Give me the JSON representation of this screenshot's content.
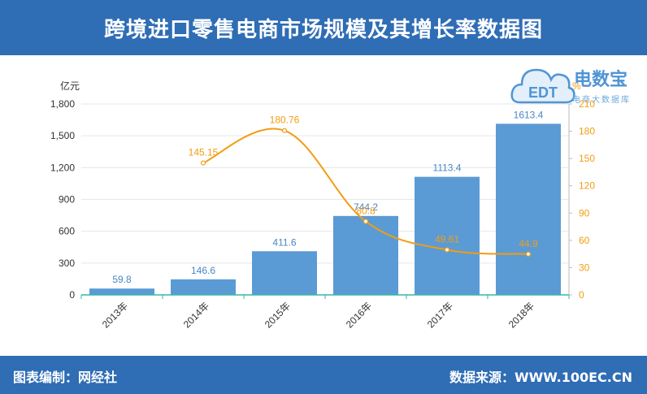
{
  "header": {
    "title": "跨境进口零售电商市场规模及其增长率数据图"
  },
  "footer": {
    "left": "图表编制：网经社",
    "right": "数据来源：WWW.100EC.CN"
  },
  "logo": {
    "text": "电数宝",
    "mark": "EDT",
    "sub": "电商大数据库"
  },
  "chart_data": {
    "type": "bar",
    "categories": [
      "2013年",
      "2014年",
      "2015年",
      "2016年",
      "2017年",
      "2018年"
    ],
    "series": [
      {
        "values": [
          59.8,
          146.6,
          411.6,
          744.2,
          1113.4,
          1613.4
        ],
        "labels": [
          "59.8",
          "146.6",
          "411.6",
          "744.2",
          "1113.4",
          "1613.4"
        ],
        "color": "#5b9bd5",
        "axis": "left"
      },
      {
        "type": "line",
        "values": [
          null,
          145.15,
          180.76,
          80.8,
          49.61,
          44.9
        ],
        "labels": [
          "",
          "145.15",
          "180.76",
          "80.8",
          "49.61",
          "44.9"
        ],
        "color": "#f39c12",
        "axis": "right",
        "smooth": true
      }
    ],
    "y_left": {
      "unit": "亿元",
      "min": 0,
      "max": 1800,
      "ticks": [
        0,
        300,
        600,
        900,
        1200,
        1500,
        1800
      ],
      "tick_labels": [
        "0",
        "300",
        "600",
        "900",
        "1,200",
        "1,500",
        "1,800"
      ]
    },
    "y_right": {
      "unit": "%",
      "min": 0,
      "max": 210,
      "ticks": [
        0,
        30,
        60,
        90,
        120,
        150,
        180,
        210
      ],
      "tick_labels": [
        "0",
        "30",
        "60",
        "90",
        "120",
        "150",
        "180",
        "210"
      ]
    },
    "grid": true
  }
}
